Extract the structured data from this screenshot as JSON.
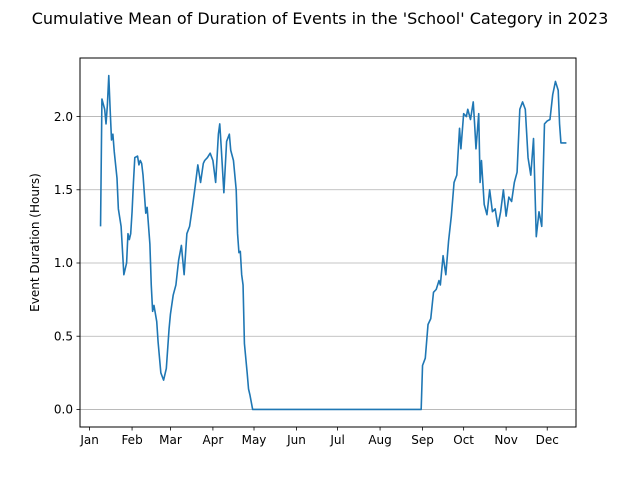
{
  "chart_data": {
    "type": "line",
    "title": "Cumulative Mean of Duration of Events in the 'School' Category in 2023",
    "xlabel": "",
    "ylabel": "Event Duration (Hours)",
    "x_ticks": [
      "Jan",
      "Feb",
      "Mar",
      "Apr",
      "May",
      "Jun",
      "Jul",
      "Aug",
      "Sep",
      "Oct",
      "Nov",
      "Dec"
    ],
    "y_ticks": [
      "0.0",
      "0.5",
      "1.0",
      "1.5",
      "2.0"
    ],
    "ylim": [
      -0.12,
      2.4
    ],
    "grid": "horizontal",
    "line_color": "#1f77b4",
    "grid_color": "#b0b0b0",
    "series": [
      {
        "x": [
          "2023-01-09",
          "2023-01-10",
          "2023-01-12",
          "2023-01-13",
          "2023-01-14",
          "2023-01-15",
          "2023-01-16",
          "2023-01-17",
          "2023-01-18",
          "2023-01-19",
          "2023-01-21",
          "2023-01-22",
          "2023-01-24",
          "2023-01-26",
          "2023-01-28",
          "2023-01-29",
          "2023-01-30",
          "2023-01-31",
          "2023-02-01",
          "2023-02-02",
          "2023-02-03",
          "2023-02-05",
          "2023-02-06",
          "2023-02-07",
          "2023-02-08",
          "2023-02-09",
          "2023-02-11",
          "2023-02-12",
          "2023-02-14",
          "2023-02-15",
          "2023-02-16",
          "2023-02-17",
          "2023-02-19",
          "2023-02-20",
          "2023-02-22",
          "2023-02-24",
          "2023-02-26",
          "2023-02-28",
          "2023-03-01",
          "2023-03-03",
          "2023-03-05",
          "2023-03-07",
          "2023-03-09",
          "2023-03-11",
          "2023-03-13",
          "2023-03-15",
          "2023-03-17",
          "2023-03-19",
          "2023-03-21",
          "2023-03-23",
          "2023-03-25",
          "2023-03-26",
          "2023-03-28",
          "2023-03-30",
          "2023-04-01",
          "2023-04-03",
          "2023-04-05",
          "2023-04-06",
          "2023-04-07",
          "2023-04-09",
          "2023-04-11",
          "2023-04-13",
          "2023-04-14",
          "2023-04-16",
          "2023-04-18",
          "2023-04-19",
          "2023-04-20",
          "2023-04-21",
          "2023-04-22",
          "2023-04-23",
          "2023-04-24",
          "2023-04-26",
          "2023-04-27",
          "2023-04-28",
          "2023-04-30",
          "2023-05-01",
          "2023-05-03",
          "2023-05-05",
          "2023-05-07",
          "2023-05-09",
          "2023-05-10",
          "2023-05-11",
          "2023-05-12",
          "2023-05-14",
          "2023-05-15",
          "2023-05-17",
          "2023-05-20",
          "2023-06-10",
          "2023-07-15",
          "2023-08-20",
          "2023-08-31",
          "2023-09-01",
          "2023-09-03",
          "2023-09-05",
          "2023-09-07",
          "2023-09-09",
          "2023-09-11",
          "2023-09-13",
          "2023-09-14",
          "2023-09-16",
          "2023-09-18",
          "2023-09-20",
          "2023-09-22",
          "2023-09-24",
          "2023-09-26",
          "2023-09-28",
          "2023-09-29",
          "2023-10-01",
          "2023-10-03",
          "2023-10-04",
          "2023-10-06",
          "2023-10-08",
          "2023-10-09",
          "2023-10-10",
          "2023-10-12",
          "2023-10-13",
          "2023-10-14",
          "2023-10-16",
          "2023-10-18",
          "2023-10-20",
          "2023-10-22",
          "2023-10-24",
          "2023-10-26",
          "2023-10-28",
          "2023-10-30",
          "2023-11-01",
          "2023-11-03",
          "2023-11-05",
          "2023-11-07",
          "2023-11-09",
          "2023-11-11",
          "2023-11-13",
          "2023-11-15",
          "2023-11-17",
          "2023-11-19",
          "2023-11-21",
          "2023-11-23",
          "2023-11-25",
          "2023-11-27",
          "2023-11-29",
          "2023-12-01",
          "2023-12-03",
          "2023-12-05",
          "2023-12-07",
          "2023-12-09",
          "2023-12-10",
          "2023-12-11",
          "2023-12-12",
          "2023-12-13",
          "2023-12-15"
        ],
        "values": [
          1.25,
          2.12,
          2.05,
          1.95,
          2.08,
          2.28,
          2.05,
          1.84,
          1.88,
          1.76,
          1.58,
          1.37,
          1.25,
          0.92,
          1.0,
          1.2,
          1.16,
          1.2,
          1.35,
          1.55,
          1.72,
          1.73,
          1.67,
          1.7,
          1.68,
          1.6,
          1.34,
          1.38,
          1.13,
          0.85,
          0.67,
          0.71,
          0.6,
          0.46,
          0.25,
          0.2,
          0.28,
          0.55,
          0.65,
          0.78,
          0.85,
          1.02,
          1.12,
          0.92,
          1.2,
          1.25,
          1.38,
          1.52,
          1.67,
          1.55,
          1.68,
          1.7,
          1.72,
          1.75,
          1.7,
          1.55,
          1.88,
          1.95,
          1.8,
          1.48,
          1.83,
          1.88,
          1.77,
          1.7,
          1.5,
          1.2,
          1.07,
          1.08,
          0.92,
          0.85,
          0.45,
          0.25,
          0.14,
          0.1,
          0.0,
          0.0,
          0.0,
          0.0,
          0.0,
          0.0,
          0.0,
          0.0,
          0.0,
          0.0,
          0.0,
          0.0,
          0.0,
          0.0,
          0.0,
          0.0,
          0.0,
          0.3,
          0.35,
          0.58,
          0.62,
          0.8,
          0.82,
          0.88,
          0.85,
          1.05,
          0.92,
          1.15,
          1.32,
          1.55,
          1.6,
          1.92,
          1.78,
          2.02,
          2.0,
          2.05,
          1.98,
          2.1,
          1.95,
          1.78,
          2.02,
          1.55,
          1.7,
          1.4,
          1.33,
          1.5,
          1.35,
          1.37,
          1.25,
          1.35,
          1.5,
          1.32,
          1.45,
          1.42,
          1.55,
          1.62,
          2.05,
          2.1,
          2.05,
          1.72,
          1.6,
          1.85,
          1.18,
          1.35,
          1.25,
          1.95,
          1.97,
          1.98,
          2.15,
          2.24,
          2.18,
          1.95,
          1.82,
          1.82,
          1.82,
          1.82
        ]
      }
    ]
  }
}
